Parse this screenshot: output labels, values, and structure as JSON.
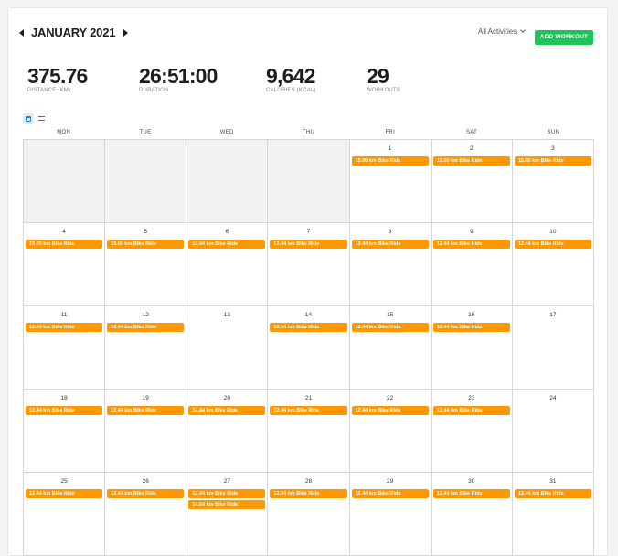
{
  "header": {
    "month_title": "JANUARY 2021",
    "filter_label": "All Activities",
    "add_button": "ADD WORKOUT"
  },
  "stats": [
    {
      "value": "375.76",
      "label": "DISTANCE (KM)"
    },
    {
      "value": "26:51:00",
      "label": "DURATION"
    },
    {
      "value": "9,642",
      "label": "CALORIES (KCAL)"
    },
    {
      "value": "29",
      "label": "WORKOUTS"
    }
  ],
  "weekdays": [
    "MON",
    "TUE",
    "WED",
    "THU",
    "FRI",
    "SAT",
    "SUN"
  ],
  "weeks": [
    [
      {
        "day": "",
        "blank": true,
        "events": []
      },
      {
        "day": "",
        "blank": true,
        "events": []
      },
      {
        "day": "",
        "blank": true,
        "events": []
      },
      {
        "day": "",
        "blank": true,
        "events": []
      },
      {
        "day": "1",
        "events": [
          "15.00 km Bike Ride"
        ]
      },
      {
        "day": "2",
        "events": [
          "15.00 km Bike Ride"
        ]
      },
      {
        "day": "3",
        "events": [
          "15.00 km Bike Ride"
        ]
      }
    ],
    [
      {
        "day": "4",
        "events": [
          "15.00 km Bike Ride"
        ]
      },
      {
        "day": "5",
        "events": [
          "15.00 km Bike Ride"
        ]
      },
      {
        "day": "6",
        "events": [
          "12.44 km Bike Ride"
        ]
      },
      {
        "day": "7",
        "events": [
          "12.44 km Bike Ride"
        ]
      },
      {
        "day": "8",
        "events": [
          "12.44 km Bike Ride"
        ]
      },
      {
        "day": "9",
        "events": [
          "12.44 km Bike Ride"
        ]
      },
      {
        "day": "10",
        "events": [
          "12.44 km Bike Ride"
        ]
      }
    ],
    [
      {
        "day": "11",
        "events": [
          "12.44 km Bike Ride"
        ]
      },
      {
        "day": "12",
        "events": [
          "12.44 km Bike Ride"
        ]
      },
      {
        "day": "13",
        "events": []
      },
      {
        "day": "14",
        "events": [
          "12.44 km Bike Ride"
        ]
      },
      {
        "day": "15",
        "events": [
          "12.44 km Bike Ride"
        ]
      },
      {
        "day": "16",
        "events": [
          "12.44 km Bike Ride"
        ]
      },
      {
        "day": "17",
        "events": []
      }
    ],
    [
      {
        "day": "18",
        "events": [
          "12.44 km Bike Ride"
        ]
      },
      {
        "day": "19",
        "events": [
          "12.44 km Bike Ride"
        ]
      },
      {
        "day": "20",
        "events": [
          "12.44 km Bike Ride"
        ]
      },
      {
        "day": "21",
        "events": [
          "12.44 km Bike Ride"
        ]
      },
      {
        "day": "22",
        "events": [
          "12.44 km Bike Ride"
        ]
      },
      {
        "day": "23",
        "events": [
          "12.44 km Bike Ride"
        ]
      },
      {
        "day": "24",
        "events": []
      }
    ],
    [
      {
        "day": "25",
        "events": [
          "12.44 km Bike Ride"
        ]
      },
      {
        "day": "26",
        "events": [
          "12.44 km Bike Ride"
        ]
      },
      {
        "day": "27",
        "events": [
          "12.44 km Bike Ride",
          "14.64 km Bike Ride"
        ]
      },
      {
        "day": "28",
        "events": [
          "12.44 km Bike Ride"
        ]
      },
      {
        "day": "29",
        "events": [
          "12.44 km Bike Ride"
        ]
      },
      {
        "day": "30",
        "events": [
          "12.44 km Bike Ride"
        ]
      },
      {
        "day": "31",
        "events": [
          "12.44 km Bike Ride"
        ]
      }
    ]
  ],
  "colors": {
    "event": "#ff9800",
    "add_button": "#1fc35a",
    "blank_cell": "#f2f2f2"
  },
  "icons": {
    "prev": "chevron-left-icon",
    "next": "chevron-right-icon",
    "calendar_view": "calendar-icon",
    "list_view": "list-icon"
  }
}
